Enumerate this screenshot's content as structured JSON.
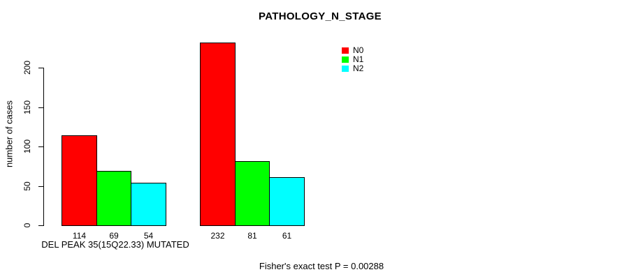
{
  "title": "PATHOLOGY_N_STAGE",
  "chart_data": {
    "type": "bar",
    "grouped": true,
    "title": "PATHOLOGY_N_STAGE",
    "ylabel": "number of cases",
    "xlabel": "",
    "yticks": [
      0,
      50,
      100,
      150,
      200
    ],
    "ylim": [
      0,
      232
    ],
    "grid": false,
    "legend_position": "top-right",
    "categories": [
      "DEL PEAK 35(15Q22.33) MUTATED",
      ""
    ],
    "series": [
      {
        "name": "N0",
        "color": "#ff0000",
        "values": [
          114,
          232
        ]
      },
      {
        "name": "N1",
        "color": "#00ff00",
        "values": [
          69,
          81
        ]
      },
      {
        "name": "N2",
        "color": "#00ffff",
        "values": [
          54,
          61
        ]
      }
    ],
    "bar_value_labels": [
      [
        114,
        69,
        54
      ],
      [
        232,
        81,
        61
      ]
    ]
  },
  "footer": {
    "text": "Fisher's exact test P = 0.00288"
  }
}
